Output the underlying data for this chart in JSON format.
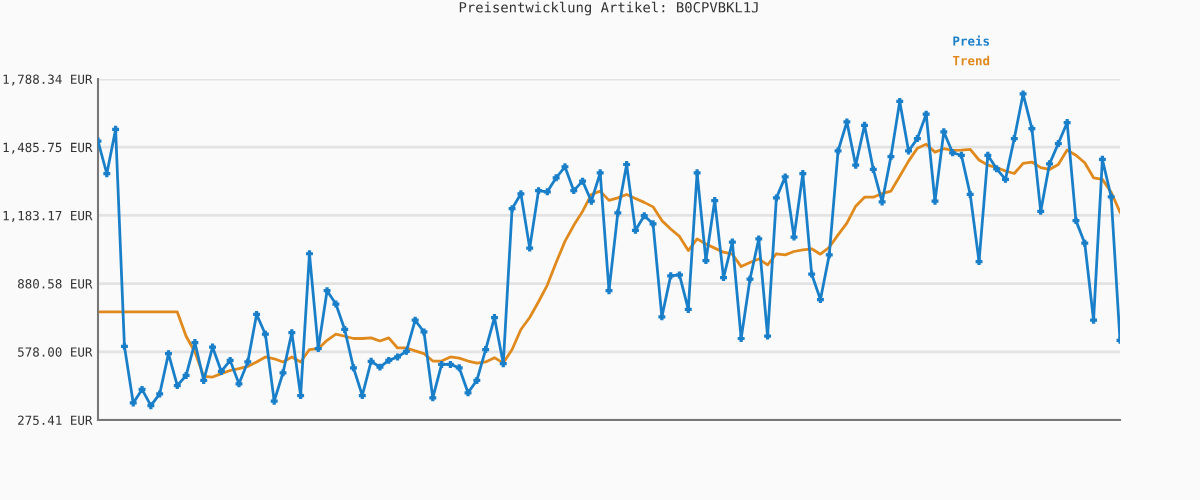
{
  "chart_data": {
    "type": "line",
    "title": "Preisentwicklung Artikel: B0CPVBKL1J",
    "categories": [
      null,
      null,
      null,
      null,
      null,
      null,
      null,
      null,
      null,
      null,
      null,
      null,
      null,
      null,
      null,
      null,
      null,
      null,
      null,
      null,
      null,
      null,
      null,
      null,
      null,
      null,
      null,
      null,
      null,
      null,
      null,
      null,
      null,
      null,
      null,
      null,
      null,
      null,
      null,
      null,
      null,
      null,
      null,
      null,
      null,
      null,
      null,
      null,
      null,
      null,
      null,
      null,
      null,
      null,
      null,
      null,
      null,
      null,
      null,
      null,
      null,
      null,
      null,
      null,
      null,
      null,
      null,
      null,
      null,
      null,
      null,
      null,
      null,
      null,
      null,
      null,
      null,
      null,
      null,
      null,
      null,
      null,
      null,
      null,
      null,
      null,
      null,
      null,
      null,
      null,
      null,
      null,
      null,
      null,
      null,
      null,
      null,
      null,
      null,
      null,
      null,
      null,
      null,
      null,
      null,
      null,
      null,
      null,
      null,
      null,
      null,
      null,
      null,
      null,
      null,
      null,
      null
    ],
    "series": [
      {
        "name": "Preis",
        "color": "#1a7fc9",
        "marker": "cross",
        "values": [
          1513,
          1368,
          1565,
          602,
          351,
          411,
          339,
          391,
          570,
          428,
          473,
          619,
          451,
          599,
          491,
          540,
          436,
          533,
          744,
          656,
          359,
          485,
          663,
          384,
          1013,
          592,
          849,
          790,
          677,
          507,
          384,
          536,
          510,
          540,
          555,
          580,
          718,
          666,
          374,
          522,
          522,
          507,
          396,
          451,
          588,
          730,
          525,
          1213,
          1279,
          1038,
          1293,
          1288,
          1350,
          1399,
          1293,
          1335,
          1246,
          1372,
          849,
          1194,
          1409,
          1117,
          1182,
          1146,
          733,
          915,
          919,
          766,
          1372,
          983,
          1249,
          907,
          1065,
          637,
          900,
          1079,
          648,
          1261,
          1354,
          1087,
          1369,
          923,
          810,
          1008,
          1469,
          1598,
          1406,
          1583,
          1387,
          1243,
          1444,
          1689,
          1469,
          1524,
          1632,
          1246,
          1554,
          1461,
          1450,
          1276,
          978,
          1450,
          1390,
          1343,
          1524,
          1722,
          1568,
          1201,
          1412,
          1502,
          1595,
          1160,
          1060,
          718,
          1432,
          1265,
          629
        ]
      },
      {
        "name": "Trend",
        "color": "#e08a1e",
        "marker": "none",
        "values": [
          755,
          755,
          755,
          755,
          755,
          755,
          755,
          755,
          755,
          755,
          647,
          577,
          469,
          466,
          481,
          495,
          503,
          513,
          533,
          555,
          547,
          533,
          555,
          533,
          588,
          592,
          629,
          656,
          647,
          637,
          637,
          640,
          626,
          640,
          595,
          595,
          582,
          570,
          537,
          537,
          555,
          550,
          537,
          528,
          533,
          552,
          528,
          588,
          677,
          730,
          800,
          874,
          974,
          1068,
          1139,
          1201,
          1276,
          1291,
          1250,
          1261,
          1276,
          1258,
          1241,
          1221,
          1160,
          1123,
          1090,
          1027,
          1079,
          1056,
          1038,
          1020,
          1011,
          956,
          974,
          990,
          964,
          1013,
          1008,
          1023,
          1030,
          1035,
          1011,
          1042,
          1097,
          1149,
          1224,
          1264,
          1264,
          1280,
          1291,
          1357,
          1424,
          1481,
          1499,
          1464,
          1479,
          1472,
          1473,
          1476,
          1429,
          1406,
          1395,
          1380,
          1369,
          1414,
          1420,
          1395,
          1387,
          1409,
          1473,
          1450,
          1417,
          1350,
          1343,
          1286,
          1198
        ]
      }
    ],
    "ylim": [
      275.41,
      1788.34
    ],
    "yticks": [
      {
        "value": 275.41,
        "label": "275.41 EUR"
      },
      {
        "value": 578.0,
        "label": "578.00 EUR"
      },
      {
        "value": 880.58,
        "label": "880.58 EUR"
      },
      {
        "value": 1183.17,
        "label": "1,183.17 EUR"
      },
      {
        "value": 1485.75,
        "label": "1,485.75 EUR"
      },
      {
        "value": 1788.34,
        "label": "1,788.34 EUR"
      }
    ],
    "grid": "y",
    "legend": "top right",
    "tick_labels": "y",
    "line_style": "solid"
  }
}
